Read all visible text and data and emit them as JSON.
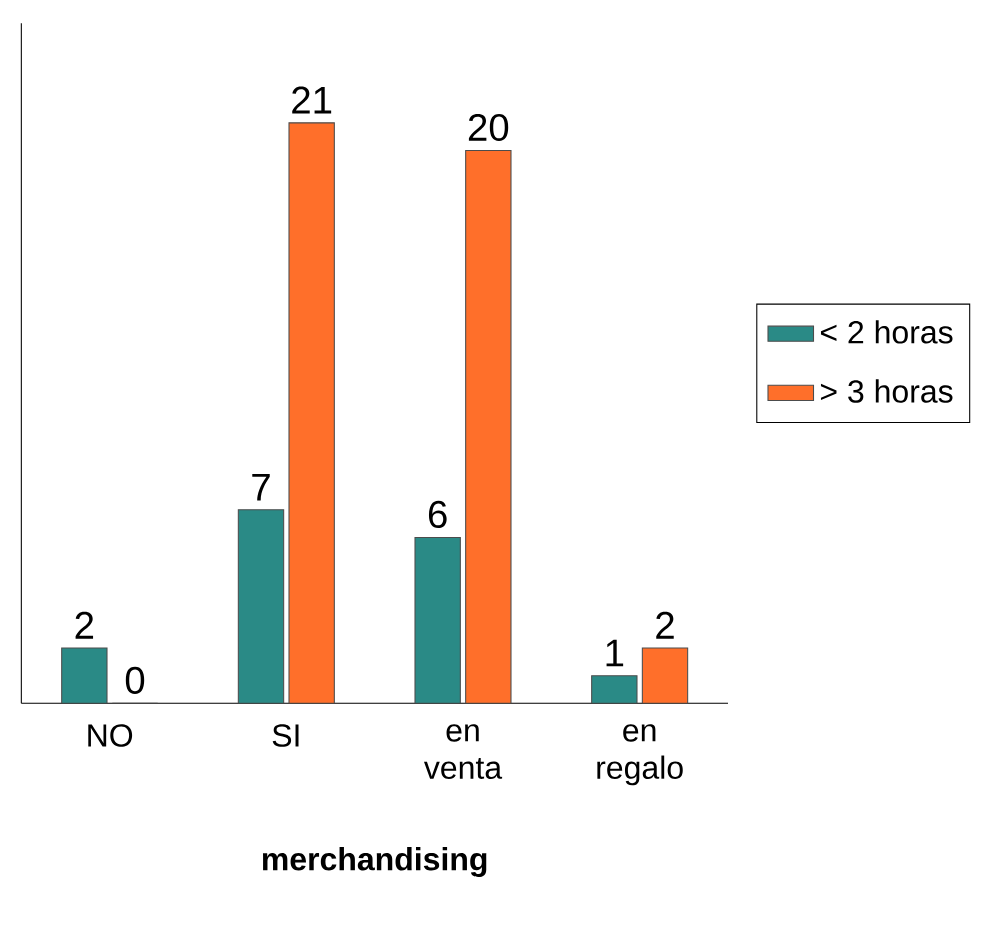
{
  "chart_data": {
    "type": "bar",
    "categories": [
      "NO",
      "SI",
      "en venta",
      "en regalo"
    ],
    "series": [
      {
        "name": "< 2 horas",
        "color": "#2a8a86",
        "values": [
          2,
          7,
          6,
          1
        ]
      },
      {
        "name": "> 3 horas",
        "color": "#ff6f2a",
        "values": [
          0,
          21,
          20,
          2
        ]
      }
    ],
    "xlabel": "**merchandising**",
    "ylim": [
      0,
      24.6
    ],
    "tick_labels": "x",
    "data_labels": true,
    "legend": "right",
    "grid": false
  }
}
